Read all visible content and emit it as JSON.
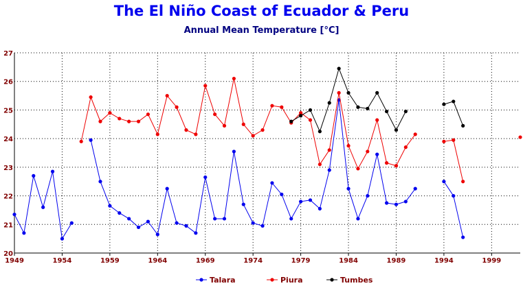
{
  "chart_data": {
    "type": "line",
    "title": "The El Niño Coast of Ecuador & Peru",
    "subtitle": "Annual Mean Temperature [°C]",
    "xlabel": "",
    "ylabel": "",
    "xlim": [
      1949,
      2002
    ],
    "ylim": [
      20,
      27
    ],
    "x_ticks": [
      1949,
      1954,
      1959,
      1964,
      1969,
      1974,
      1979,
      1984,
      1989,
      1994,
      1999
    ],
    "y_ticks": [
      20,
      21,
      22,
      23,
      24,
      25,
      26,
      27
    ],
    "grid": true,
    "legend_position": "bottom",
    "series": [
      {
        "name": "Talara",
        "color": "#0000ee",
        "points": [
          [
            1949,
            21.35
          ],
          [
            1950,
            20.7
          ],
          [
            1951,
            22.7
          ],
          [
            1952,
            21.6
          ],
          [
            1953,
            22.85
          ],
          [
            1954,
            20.5
          ],
          [
            1955,
            21.05
          ],
          null,
          [
            1957,
            23.95
          ],
          [
            1958,
            22.5
          ],
          [
            1959,
            21.65
          ],
          [
            1960,
            21.4
          ],
          [
            1961,
            21.2
          ],
          [
            1962,
            20.9
          ],
          [
            1963,
            21.1
          ],
          [
            1964,
            20.65
          ],
          [
            1965,
            22.25
          ],
          [
            1966,
            21.05
          ],
          [
            1967,
            20.95
          ],
          [
            1968,
            20.7
          ],
          [
            1969,
            22.65
          ],
          [
            1970,
            21.2
          ],
          [
            1971,
            21.2
          ],
          [
            1972,
            23.55
          ],
          [
            1973,
            21.7
          ],
          [
            1974,
            21.05
          ],
          [
            1975,
            20.95
          ],
          [
            1976,
            22.45
          ],
          [
            1977,
            22.05
          ],
          [
            1978,
            21.2
          ],
          [
            1979,
            21.8
          ],
          [
            1980,
            21.85
          ],
          [
            1981,
            21.55
          ],
          [
            1982,
            22.9
          ],
          [
            1983,
            25.35
          ],
          [
            1984,
            22.25
          ],
          [
            1985,
            21.2
          ],
          [
            1986,
            22.0
          ],
          [
            1987,
            23.45
          ],
          [
            1988,
            21.75
          ],
          [
            1989,
            21.7
          ],
          [
            1990,
            21.8
          ],
          [
            1991,
            22.25
          ],
          null,
          [
            1994,
            22.5
          ],
          [
            1995,
            22.0
          ],
          [
            1996,
            20.55
          ]
        ]
      },
      {
        "name": "Piura",
        "color": "#ee0000",
        "points": [
          [
            1956,
            23.9
          ],
          [
            1957,
            25.45
          ],
          [
            1958,
            24.6
          ],
          [
            1959,
            24.9
          ],
          [
            1960,
            24.7
          ],
          [
            1961,
            24.6
          ],
          [
            1962,
            24.6
          ],
          [
            1963,
            24.85
          ],
          [
            1964,
            24.15
          ],
          [
            1965,
            25.5
          ],
          [
            1966,
            25.1
          ],
          [
            1967,
            24.3
          ],
          [
            1968,
            24.15
          ],
          [
            1969,
            25.85
          ],
          [
            1970,
            24.85
          ],
          [
            1971,
            24.45
          ],
          [
            1972,
            26.1
          ],
          [
            1973,
            24.5
          ],
          [
            1974,
            24.1
          ],
          [
            1975,
            24.3
          ],
          [
            1976,
            25.15
          ],
          [
            1977,
            25.1
          ],
          [
            1978,
            24.55
          ],
          [
            1979,
            24.9
          ],
          [
            1980,
            24.65
          ],
          [
            1981,
            23.1
          ],
          [
            1982,
            23.6
          ],
          [
            1983,
            25.6
          ],
          [
            1984,
            23.75
          ],
          [
            1985,
            22.95
          ],
          [
            1986,
            23.55
          ],
          [
            1987,
            24.65
          ],
          [
            1988,
            23.15
          ],
          [
            1989,
            23.05
          ],
          [
            1990,
            23.7
          ],
          [
            1991,
            24.15
          ],
          null,
          [
            1994,
            23.9
          ],
          [
            1995,
            23.95
          ],
          [
            1996,
            22.5
          ],
          null,
          [
            2002,
            24.05
          ]
        ]
      },
      {
        "name": "Tumbes",
        "color": "#000000",
        "points": [
          [
            1978,
            24.6
          ],
          [
            1979,
            24.8
          ],
          [
            1980,
            25.0
          ],
          [
            1981,
            24.25
          ],
          [
            1982,
            25.25
          ],
          [
            1983,
            26.45
          ],
          [
            1984,
            25.6
          ],
          [
            1985,
            25.1
          ],
          [
            1986,
            25.05
          ],
          [
            1987,
            25.6
          ],
          [
            1988,
            24.95
          ],
          [
            1989,
            24.3
          ],
          [
            1990,
            24.95
          ],
          null,
          [
            1994,
            25.2
          ],
          [
            1995,
            25.3
          ],
          [
            1996,
            24.45
          ]
        ]
      }
    ]
  }
}
